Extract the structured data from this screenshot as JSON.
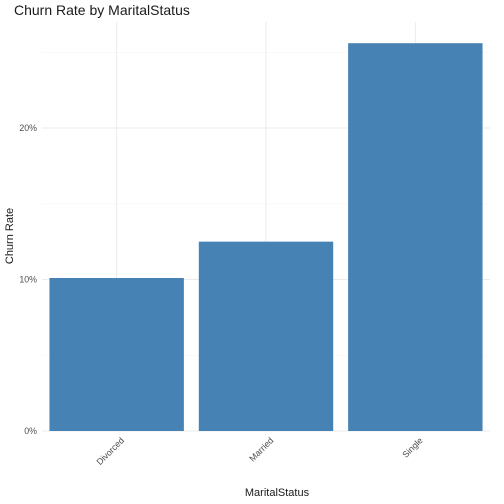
{
  "chart_data": {
    "type": "bar",
    "title": "Churn Rate by MaritalStatus",
    "xlabel": "MaritalStatus",
    "ylabel": "Churn Rate",
    "categories": [
      "Divorced",
      "Married",
      "Single"
    ],
    "values": [
      0.101,
      0.125,
      0.256
    ],
    "ylim": [
      0,
      0.27
    ],
    "yticks": [
      0,
      0.1,
      0.2
    ],
    "ytick_labels": [
      "0%",
      "10%",
      "20%"
    ],
    "bar_color": "#4682B4",
    "grid": true,
    "legend": "none"
  }
}
